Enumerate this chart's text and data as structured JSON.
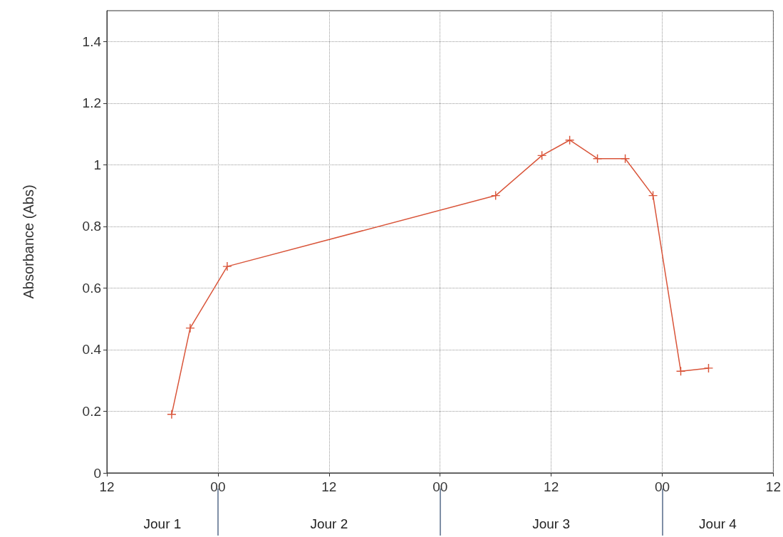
{
  "chart_data": {
    "type": "line",
    "ylabel": "Absorbance (Abs)",
    "x": [
      "--01-01T19:00",
      "--01-01T21:00",
      "--01-02T01:00",
      "--01-03T06:00",
      "--01-03T11:00",
      "--01-03T14:00",
      "--01-03T17:00",
      "--01-03T20:00",
      "--01-03T23:00",
      "--01-04T02:00",
      "--01-04T05:00"
    ],
    "series": [
      {
        "color": "#d9553a",
        "values": [
          0.19,
          0.47,
          0.67,
          0.9,
          1.03,
          1.08,
          1.02,
          1.02,
          0.9,
          0.33,
          0.34
        ]
      }
    ],
    "xlim": [
      "--01-01T12:00",
      "--01-04T12:00"
    ],
    "xticks": [
      {
        "value": "--01-01T12:00",
        "label": "12"
      },
      {
        "value": "--01-02T00:00",
        "label": "00"
      },
      {
        "value": "--01-02T12:00",
        "label": "12"
      },
      {
        "value": "--01-03T00:00",
        "label": "00"
      },
      {
        "value": "--01-03T12:00",
        "label": "12"
      },
      {
        "value": "--01-04T00:00",
        "label": "00"
      },
      {
        "value": "--01-04T12:00",
        "label": "12"
      }
    ],
    "annotations": [
      "Jour 1",
      "Jour 2",
      "Jour 3",
      "Jour 4"
    ],
    "ylim": [
      0,
      1.5
    ],
    "yticks": [
      0,
      0.2,
      0.4,
      0.6,
      0.8,
      1,
      1.2,
      1.4
    ],
    "grid": true,
    "marker": "cross",
    "line_style": "solid"
  }
}
